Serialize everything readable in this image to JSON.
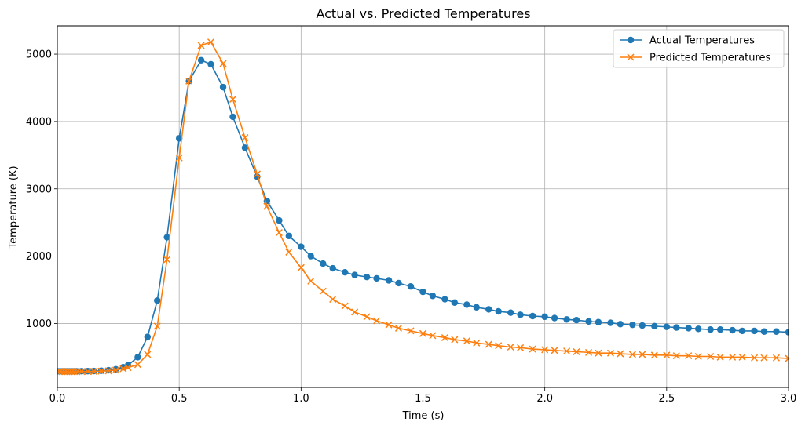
{
  "chart_data": {
    "type": "line",
    "title": "Actual vs. Predicted Temperatures",
    "xlabel": "Time (s)",
    "ylabel": "Temperature (K)",
    "xlim": [
      0,
      3.0
    ],
    "ylim": [
      50,
      5420
    ],
    "xticks": [
      {
        "value": 0.0,
        "label": "0.0"
      },
      {
        "value": 0.5,
        "label": "0.5"
      },
      {
        "value": 1.0,
        "label": "1.0"
      },
      {
        "value": 1.5,
        "label": "1.5"
      },
      {
        "value": 2.0,
        "label": "2.0"
      },
      {
        "value": 2.5,
        "label": "2.5"
      },
      {
        "value": 3.0,
        "label": "3.0"
      }
    ],
    "yticks": [
      {
        "value": 1000,
        "label": "1000"
      },
      {
        "value": 2000,
        "label": "2000"
      },
      {
        "value": 3000,
        "label": "3000"
      },
      {
        "value": 4000,
        "label": "4000"
      },
      {
        "value": 5000,
        "label": "5000"
      }
    ],
    "grid": true,
    "legend": "top-right",
    "series": [
      {
        "name": "Actual Temperatures",
        "color": "#1f77b4",
        "marker": "circle",
        "x": [
          0.0,
          0.01,
          0.02,
          0.03,
          0.04,
          0.05,
          0.06,
          0.07,
          0.08,
          0.1,
          0.125,
          0.15,
          0.18,
          0.21,
          0.24,
          0.27,
          0.29,
          0.33,
          0.37,
          0.41,
          0.45,
          0.5,
          0.54,
          0.59,
          0.63,
          0.68,
          0.72,
          0.77,
          0.82,
          0.86,
          0.91,
          0.95,
          1.0,
          1.04,
          1.09,
          1.13,
          1.18,
          1.22,
          1.27,
          1.31,
          1.36,
          1.4,
          1.45,
          1.5,
          1.54,
          1.59,
          1.63,
          1.68,
          1.72,
          1.77,
          1.81,
          1.86,
          1.9,
          1.95,
          2.0,
          2.04,
          2.09,
          2.13,
          2.18,
          2.22,
          2.27,
          2.31,
          2.36,
          2.4,
          2.45,
          2.5,
          2.54,
          2.59,
          2.63,
          2.68,
          2.72,
          2.77,
          2.81,
          2.86,
          2.9,
          2.95,
          3.0
        ],
        "y": [
          290,
          290,
          290,
          290,
          290,
          290,
          290,
          290,
          290,
          291,
          292,
          294,
          298,
          305,
          320,
          350,
          380,
          500,
          800,
          1340,
          2280,
          3750,
          4600,
          4910,
          4850,
          4510,
          4070,
          3610,
          3180,
          2820,
          2530,
          2300,
          2140,
          2000,
          1890,
          1820,
          1760,
          1720,
          1690,
          1670,
          1640,
          1600,
          1550,
          1470,
          1410,
          1360,
          1310,
          1280,
          1240,
          1210,
          1180,
          1160,
          1130,
          1110,
          1100,
          1080,
          1060,
          1050,
          1030,
          1020,
          1010,
          990,
          980,
          970,
          960,
          950,
          940,
          930,
          920,
          910,
          910,
          900,
          890,
          890,
          880,
          880,
          870
        ]
      },
      {
        "name": "Predicted Temperatures",
        "color": "#ff7f0e",
        "marker": "x",
        "x": [
          0.0,
          0.01,
          0.02,
          0.03,
          0.04,
          0.05,
          0.06,
          0.07,
          0.08,
          0.1,
          0.125,
          0.15,
          0.18,
          0.21,
          0.24,
          0.27,
          0.29,
          0.33,
          0.37,
          0.41,
          0.45,
          0.5,
          0.54,
          0.59,
          0.63,
          0.68,
          0.72,
          0.77,
          0.82,
          0.86,
          0.91,
          0.95,
          1.0,
          1.04,
          1.09,
          1.13,
          1.18,
          1.22,
          1.27,
          1.31,
          1.36,
          1.4,
          1.45,
          1.5,
          1.54,
          1.59,
          1.63,
          1.68,
          1.72,
          1.77,
          1.81,
          1.86,
          1.9,
          1.95,
          2.0,
          2.04,
          2.09,
          2.13,
          2.18,
          2.22,
          2.27,
          2.31,
          2.36,
          2.4,
          2.45,
          2.5,
          2.54,
          2.59,
          2.63,
          2.68,
          2.72,
          2.77,
          2.81,
          2.86,
          2.9,
          2.95,
          3.0
        ],
        "y": [
          285,
          285,
          285,
          285,
          285,
          285,
          285,
          285,
          285,
          286,
          287,
          288,
          292,
          297,
          308,
          328,
          345,
          390,
          540,
          960,
          1950,
          3460,
          4600,
          5130,
          5180,
          4860,
          4330,
          3760,
          3220,
          2740,
          2350,
          2060,
          1830,
          1630,
          1480,
          1360,
          1260,
          1170,
          1100,
          1040,
          980,
          930,
          890,
          850,
          820,
          790,
          760,
          740,
          710,
          690,
          670,
          650,
          640,
          620,
          610,
          600,
          590,
          580,
          570,
          560,
          560,
          550,
          540,
          540,
          530,
          530,
          520,
          520,
          510,
          510,
          500,
          500,
          500,
          490,
          490,
          490,
          480
        ]
      }
    ]
  }
}
